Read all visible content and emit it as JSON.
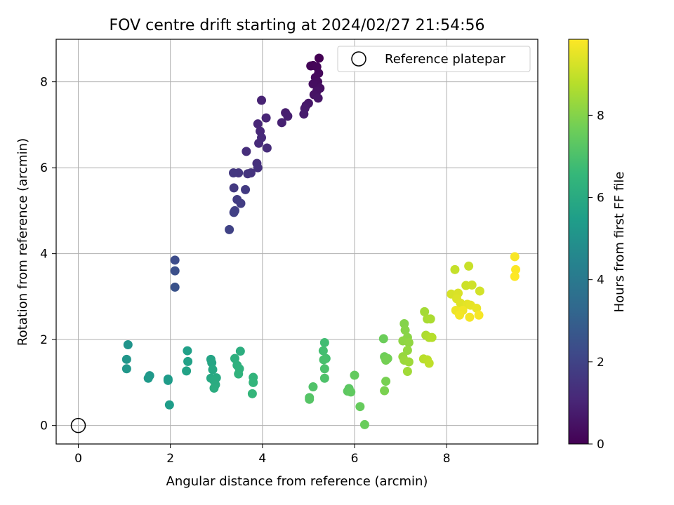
{
  "chart_data": {
    "type": "scatter",
    "title": "FOV centre drift starting at 2024/02/27 21:54:56",
    "xlabel": "Angular distance from reference (arcmin)",
    "ylabel": "Rotation from reference (arcmin)",
    "xlim": [
      -0.48,
      9.98
    ],
    "ylim": [
      -0.43,
      8.99
    ],
    "xticks": [
      0,
      2,
      4,
      6,
      8
    ],
    "yticks": [
      0,
      2,
      4,
      6,
      8
    ],
    "grid": true,
    "legend": {
      "placement": "upper-right",
      "label": "Reference platepar"
    },
    "reference_point": {
      "x": 0,
      "y": 0
    },
    "colorbar": {
      "label": "Hours from first FF file",
      "min": 0,
      "max": 9.85,
      "ticks": [
        0,
        2,
        4,
        6,
        8
      ],
      "colormap": "viridis",
      "colors": [
        "#440154",
        "#482878",
        "#3e4989",
        "#31688e",
        "#26828e",
        "#1f9e89",
        "#35b779",
        "#6ece58",
        "#b5de2b",
        "#fde725"
      ]
    },
    "series": [
      {
        "values": [
          {
            "x": 5.23,
            "y": 8.55,
            "h": 0.0
          },
          {
            "x": 5.1,
            "y": 8.38,
            "h": 0.05
          },
          {
            "x": 5.05,
            "y": 8.37,
            "h": 0.1
          },
          {
            "x": 5.18,
            "y": 8.35,
            "h": 0.15
          },
          {
            "x": 5.22,
            "y": 8.2,
            "h": 0.2
          },
          {
            "x": 5.15,
            "y": 8.1,
            "h": 0.25
          },
          {
            "x": 5.2,
            "y": 8.0,
            "h": 0.3
          },
          {
            "x": 5.1,
            "y": 7.95,
            "h": 0.35
          },
          {
            "x": 5.25,
            "y": 7.85,
            "h": 0.4
          },
          {
            "x": 5.18,
            "y": 7.78,
            "h": 0.45
          },
          {
            "x": 5.12,
            "y": 7.7,
            "h": 0.5
          },
          {
            "x": 5.21,
            "y": 7.62,
            "h": 0.55
          },
          {
            "x": 5.0,
            "y": 7.5,
            "h": 0.6
          },
          {
            "x": 4.95,
            "y": 7.45,
            "h": 0.65
          },
          {
            "x": 4.92,
            "y": 7.38,
            "h": 0.7
          },
          {
            "x": 4.9,
            "y": 7.25,
            "h": 0.75
          },
          {
            "x": 4.5,
            "y": 7.28,
            "h": 0.8
          },
          {
            "x": 4.55,
            "y": 7.2,
            "h": 0.85
          },
          {
            "x": 4.42,
            "y": 7.05,
            "h": 0.9
          },
          {
            "x": 3.98,
            "y": 7.57,
            "h": 0.95
          },
          {
            "x": 4.08,
            "y": 7.16,
            "h": 1.0
          },
          {
            "x": 3.9,
            "y": 7.02,
            "h": 1.05
          },
          {
            "x": 3.95,
            "y": 6.85,
            "h": 1.1
          },
          {
            "x": 3.98,
            "y": 6.7,
            "h": 1.15
          },
          {
            "x": 3.92,
            "y": 6.57,
            "h": 1.2
          },
          {
            "x": 4.1,
            "y": 6.46,
            "h": 1.25
          },
          {
            "x": 3.65,
            "y": 6.38,
            "h": 1.3
          },
          {
            "x": 3.88,
            "y": 6.1,
            "h": 1.35
          },
          {
            "x": 3.9,
            "y": 6.0,
            "h": 1.4
          },
          {
            "x": 3.75,
            "y": 5.88,
            "h": 1.45
          },
          {
            "x": 3.68,
            "y": 5.86,
            "h": 1.5
          },
          {
            "x": 3.48,
            "y": 5.88,
            "h": 1.55
          },
          {
            "x": 3.37,
            "y": 5.88,
            "h": 1.6
          },
          {
            "x": 3.38,
            "y": 5.53,
            "h": 1.65
          },
          {
            "x": 3.63,
            "y": 5.49,
            "h": 1.7
          },
          {
            "x": 3.45,
            "y": 5.26,
            "h": 1.75
          },
          {
            "x": 3.53,
            "y": 5.17,
            "h": 1.8
          },
          {
            "x": 3.4,
            "y": 5.0,
            "h": 1.85
          },
          {
            "x": 3.38,
            "y": 4.96,
            "h": 1.9
          },
          {
            "x": 3.28,
            "y": 4.56,
            "h": 1.95
          },
          {
            "x": 2.1,
            "y": 3.85,
            "h": 2.3
          },
          {
            "x": 2.1,
            "y": 3.6,
            "h": 2.4
          },
          {
            "x": 2.1,
            "y": 3.22,
            "h": 2.5
          },
          {
            "x": 1.08,
            "y": 1.88,
            "h": 5.1
          },
          {
            "x": 1.05,
            "y": 1.54,
            "h": 5.15
          },
          {
            "x": 1.05,
            "y": 1.32,
            "h": 5.2
          },
          {
            "x": 1.55,
            "y": 1.16,
            "h": 5.25
          },
          {
            "x": 1.52,
            "y": 1.1,
            "h": 5.3
          },
          {
            "x": 1.95,
            "y": 1.08,
            "h": 5.35
          },
          {
            "x": 1.95,
            "y": 1.05,
            "h": 5.4
          },
          {
            "x": 1.98,
            "y": 0.48,
            "h": 5.45
          },
          {
            "x": 2.37,
            "y": 1.74,
            "h": 5.55
          },
          {
            "x": 2.38,
            "y": 1.49,
            "h": 5.6
          },
          {
            "x": 2.35,
            "y": 1.27,
            "h": 5.65
          },
          {
            "x": 2.88,
            "y": 1.54,
            "h": 5.75
          },
          {
            "x": 2.9,
            "y": 1.46,
            "h": 5.8
          },
          {
            "x": 2.92,
            "y": 1.3,
            "h": 5.85
          },
          {
            "x": 2.88,
            "y": 1.1,
            "h": 5.9
          },
          {
            "x": 3.0,
            "y": 1.11,
            "h": 5.95
          },
          {
            "x": 2.95,
            "y": 1.04,
            "h": 6.0
          },
          {
            "x": 2.98,
            "y": 0.95,
            "h": 6.05
          },
          {
            "x": 2.95,
            "y": 0.87,
            "h": 6.1
          },
          {
            "x": 3.52,
            "y": 1.73,
            "h": 6.15
          },
          {
            "x": 3.4,
            "y": 1.56,
            "h": 6.2
          },
          {
            "x": 3.45,
            "y": 1.4,
            "h": 6.25
          },
          {
            "x": 3.5,
            "y": 1.32,
            "h": 6.3
          },
          {
            "x": 3.48,
            "y": 1.2,
            "h": 6.35
          },
          {
            "x": 3.8,
            "y": 1.12,
            "h": 6.4
          },
          {
            "x": 3.8,
            "y": 1.0,
            "h": 6.45
          },
          {
            "x": 3.78,
            "y": 0.74,
            "h": 6.5
          },
          {
            "x": 5.35,
            "y": 1.93,
            "h": 6.8
          },
          {
            "x": 5.32,
            "y": 1.74,
            "h": 6.85
          },
          {
            "x": 5.38,
            "y": 1.56,
            "h": 6.9
          },
          {
            "x": 5.33,
            "y": 1.53,
            "h": 6.95
          },
          {
            "x": 5.35,
            "y": 1.32,
            "h": 7.0
          },
          {
            "x": 5.35,
            "y": 1.1,
            "h": 7.05
          },
          {
            "x": 5.1,
            "y": 0.9,
            "h": 7.1
          },
          {
            "x": 5.02,
            "y": 0.65,
            "h": 7.15
          },
          {
            "x": 5.02,
            "y": 0.61,
            "h": 7.2
          },
          {
            "x": 5.88,
            "y": 0.86,
            "h": 7.3
          },
          {
            "x": 5.85,
            "y": 0.8,
            "h": 7.35
          },
          {
            "x": 5.92,
            "y": 0.78,
            "h": 7.4
          },
          {
            "x": 6.0,
            "y": 1.17,
            "h": 7.45
          },
          {
            "x": 6.12,
            "y": 0.44,
            "h": 7.5
          },
          {
            "x": 6.22,
            "y": 0.02,
            "h": 7.55
          },
          {
            "x": 6.63,
            "y": 2.02,
            "h": 7.6
          },
          {
            "x": 6.65,
            "y": 1.6,
            "h": 7.65
          },
          {
            "x": 6.72,
            "y": 1.56,
            "h": 7.7
          },
          {
            "x": 6.68,
            "y": 1.52,
            "h": 7.75
          },
          {
            "x": 6.68,
            "y": 1.03,
            "h": 7.8
          },
          {
            "x": 6.65,
            "y": 0.81,
            "h": 7.85
          },
          {
            "x": 7.08,
            "y": 2.37,
            "h": 8.0
          },
          {
            "x": 7.1,
            "y": 2.22,
            "h": 8.05
          },
          {
            "x": 7.15,
            "y": 2.05,
            "h": 8.1
          },
          {
            "x": 7.05,
            "y": 1.97,
            "h": 8.15
          },
          {
            "x": 7.18,
            "y": 1.93,
            "h": 8.2
          },
          {
            "x": 7.15,
            "y": 1.75,
            "h": 8.25
          },
          {
            "x": 7.05,
            "y": 1.6,
            "h": 8.3
          },
          {
            "x": 7.08,
            "y": 1.52,
            "h": 8.35
          },
          {
            "x": 7.18,
            "y": 1.48,
            "h": 8.4
          },
          {
            "x": 7.15,
            "y": 1.26,
            "h": 8.45
          },
          {
            "x": 7.52,
            "y": 2.65,
            "h": 8.5
          },
          {
            "x": 7.58,
            "y": 2.48,
            "h": 8.55
          },
          {
            "x": 7.65,
            "y": 2.48,
            "h": 8.6
          },
          {
            "x": 7.55,
            "y": 2.1,
            "h": 8.65
          },
          {
            "x": 7.62,
            "y": 2.05,
            "h": 8.7
          },
          {
            "x": 7.68,
            "y": 2.05,
            "h": 8.75
          },
          {
            "x": 7.5,
            "y": 1.55,
            "h": 8.8
          },
          {
            "x": 7.58,
            "y": 1.53,
            "h": 8.85
          },
          {
            "x": 7.62,
            "y": 1.45,
            "h": 8.9
          },
          {
            "x": 8.18,
            "y": 3.63,
            "h": 9.0
          },
          {
            "x": 8.48,
            "y": 3.71,
            "h": 9.05
          },
          {
            "x": 8.42,
            "y": 3.26,
            "h": 9.1
          },
          {
            "x": 8.55,
            "y": 3.27,
            "h": 9.15
          },
          {
            "x": 8.72,
            "y": 3.13,
            "h": 9.2
          },
          {
            "x": 8.1,
            "y": 3.06,
            "h": 9.25
          },
          {
            "x": 8.25,
            "y": 3.08,
            "h": 9.3
          },
          {
            "x": 8.22,
            "y": 2.95,
            "h": 9.35
          },
          {
            "x": 8.3,
            "y": 2.85,
            "h": 9.4
          },
          {
            "x": 8.45,
            "y": 2.82,
            "h": 9.45
          },
          {
            "x": 8.52,
            "y": 2.8,
            "h": 9.5
          },
          {
            "x": 8.65,
            "y": 2.73,
            "h": 9.55
          },
          {
            "x": 8.2,
            "y": 2.68,
            "h": 9.6
          },
          {
            "x": 8.35,
            "y": 2.68,
            "h": 9.65
          },
          {
            "x": 8.28,
            "y": 2.57,
            "h": 9.7
          },
          {
            "x": 8.5,
            "y": 2.52,
            "h": 9.72
          },
          {
            "x": 8.7,
            "y": 2.57,
            "h": 9.74
          },
          {
            "x": 9.48,
            "y": 3.93,
            "h": 9.78
          },
          {
            "x": 9.5,
            "y": 3.63,
            "h": 9.82
          },
          {
            "x": 9.48,
            "y": 3.47,
            "h": 9.85
          }
        ]
      }
    ]
  }
}
